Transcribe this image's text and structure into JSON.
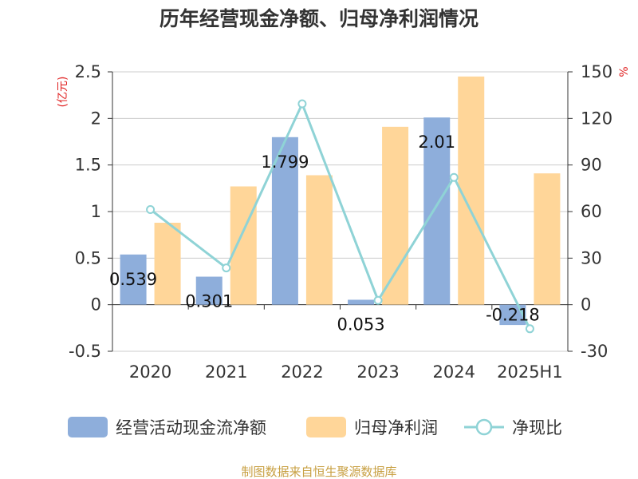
{
  "chart_data": {
    "type": "bar",
    "title": "历年经营现金净额、归母净利润情况",
    "categories": [
      "2020",
      "2021",
      "2022",
      "2023",
      "2024",
      "2025H1"
    ],
    "series": [
      {
        "name": "经营活动现金流净额",
        "type": "bar",
        "axis": "left",
        "color": "#8eaedb",
        "values": [
          0.539,
          0.301,
          1.799,
          0.053,
          2.01,
          -0.218
        ]
      },
      {
        "name": "归母净利润",
        "type": "bar",
        "axis": "left",
        "color": "#ffd699",
        "values": [
          0.88,
          1.27,
          1.39,
          1.91,
          2.45,
          1.41
        ]
      },
      {
        "name": "净现比",
        "type": "line",
        "axis": "right",
        "color": "#8fd3d6",
        "values": [
          61.3,
          23.7,
          129.4,
          2.8,
          82.0,
          -15.5
        ]
      }
    ],
    "data_labels": [
      "0.539",
      "0.301",
      "1.799",
      "0.053",
      "2.01",
      "-0.218"
    ],
    "left_axis": {
      "label": "(亿元)",
      "min": -0.5,
      "max": 2.5,
      "ticks": [
        "-0.5",
        "0",
        "0.5",
        "1",
        "1.5",
        "2",
        "2.5"
      ]
    },
    "right_axis": {
      "label": "%",
      "min": -30,
      "max": 150,
      "ticks": [
        "-30",
        "0",
        "30",
        "60",
        "90",
        "120",
        "150"
      ]
    },
    "grid": true,
    "legend_position": "bottom"
  },
  "source": "制图数据来自恒生聚源数据库"
}
